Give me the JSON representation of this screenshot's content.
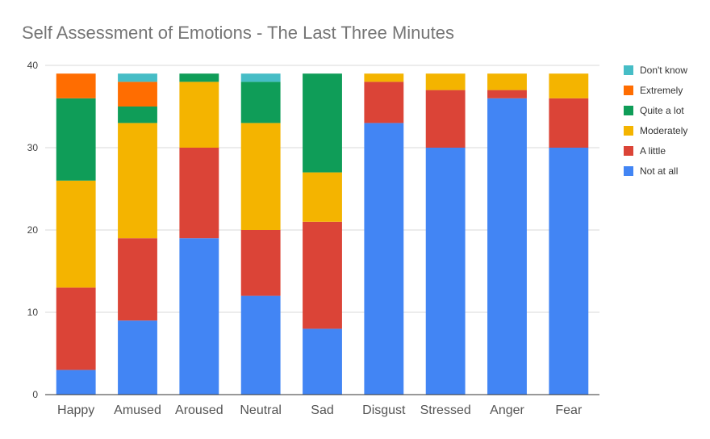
{
  "chart_data": {
    "type": "bar",
    "stacked": true,
    "title": "Self Assessment of Emotions - The Last Three Minutes",
    "categories": [
      "Happy",
      "Amused",
      "Aroused",
      "Neutral",
      "Sad",
      "Disgust",
      "Stressed",
      "Anger",
      "Fear"
    ],
    "series": [
      {
        "name": "Not at all",
        "color": "#4285f4",
        "values": [
          3,
          9,
          19,
          12,
          8,
          33,
          30,
          36,
          30
        ]
      },
      {
        "name": "A little",
        "color": "#db4437",
        "values": [
          10,
          10,
          11,
          8,
          13,
          5,
          7,
          1,
          6
        ]
      },
      {
        "name": "Moderately",
        "color": "#f4b400",
        "values": [
          13,
          14,
          8,
          13,
          6,
          1,
          2,
          2,
          3
        ]
      },
      {
        "name": "Quite a lot",
        "color": "#0f9d58",
        "values": [
          10,
          2,
          1,
          5,
          12,
          0,
          0,
          0,
          0
        ]
      },
      {
        "name": "Extremely",
        "color": "#ff6d01",
        "values": [
          3,
          3,
          0,
          0,
          0,
          0,
          0,
          0,
          0
        ]
      },
      {
        "name": "Don't know",
        "color": "#46bdc6",
        "values": [
          0,
          1,
          0,
          1,
          0,
          0,
          0,
          0,
          0
        ]
      }
    ],
    "ylim": [
      0,
      40
    ],
    "yticks": [
      0,
      10,
      20,
      30,
      40
    ],
    "xlabel": "",
    "ylabel": "",
    "grid": true,
    "legend_position": "right"
  }
}
